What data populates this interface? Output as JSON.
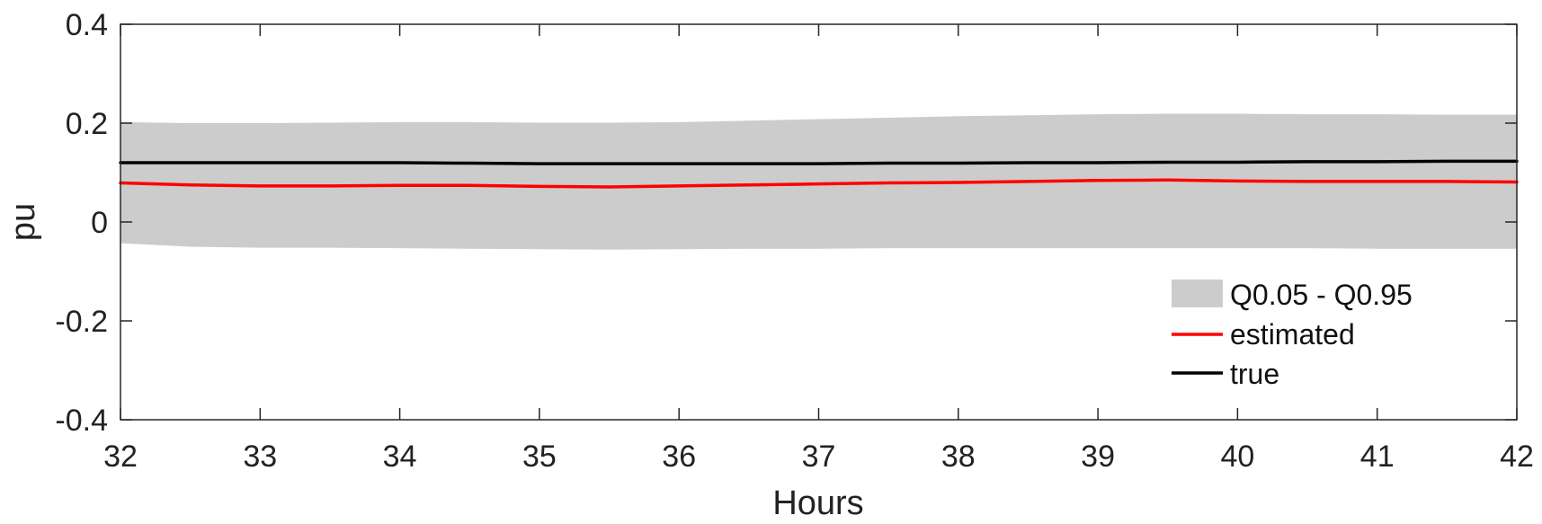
{
  "chart_data": {
    "type": "line",
    "xlabel": "Hours",
    "ylabel": "pu",
    "xlim": [
      32,
      42
    ],
    "ylim": [
      -0.4,
      0.4
    ],
    "xticks": [
      32,
      33,
      34,
      35,
      36,
      37,
      38,
      39,
      40,
      41,
      42
    ],
    "xtick_labels": [
      "32",
      "33",
      "34",
      "35",
      "36",
      "37",
      "38",
      "39",
      "40",
      "41",
      "42"
    ],
    "yticks": [
      -0.4,
      -0.2,
      0,
      0.2,
      0.4
    ],
    "ytick_labels": [
      "-0.4",
      "-0.2",
      "0",
      "0.2",
      "0.4"
    ],
    "grid": false,
    "legend_position": "bottom-right",
    "x": [
      32,
      32.5,
      33,
      33.5,
      34,
      34.5,
      35,
      35.5,
      36,
      36.5,
      37,
      37.5,
      38,
      38.5,
      39,
      39.5,
      40,
      40.5,
      41,
      41.5,
      42
    ],
    "band": {
      "name": "Q0.05 - Q0.95",
      "color": "#cccccc",
      "upper": [
        0.202,
        0.2,
        0.2,
        0.201,
        0.202,
        0.202,
        0.201,
        0.201,
        0.202,
        0.205,
        0.208,
        0.211,
        0.214,
        0.216,
        0.218,
        0.219,
        0.219,
        0.218,
        0.218,
        0.217,
        0.217
      ],
      "lower": [
        -0.043,
        -0.05,
        -0.052,
        -0.052,
        -0.053,
        -0.054,
        -0.055,
        -0.056,
        -0.055,
        -0.054,
        -0.054,
        -0.053,
        -0.053,
        -0.053,
        -0.053,
        -0.053,
        -0.053,
        -0.053,
        -0.054,
        -0.054,
        -0.054
      ]
    },
    "series": [
      {
        "name": "estimated",
        "color": "#ff0000",
        "values": [
          0.079,
          0.075,
          0.073,
          0.073,
          0.074,
          0.074,
          0.072,
          0.071,
          0.073,
          0.075,
          0.077,
          0.079,
          0.08,
          0.082,
          0.084,
          0.085,
          0.083,
          0.082,
          0.082,
          0.082,
          0.081
        ]
      },
      {
        "name": "true",
        "color": "#000000",
        "values": [
          0.12,
          0.12,
          0.12,
          0.12,
          0.12,
          0.119,
          0.118,
          0.118,
          0.118,
          0.118,
          0.118,
          0.119,
          0.119,
          0.12,
          0.12,
          0.121,
          0.121,
          0.122,
          0.122,
          0.123,
          0.123
        ]
      }
    ]
  }
}
